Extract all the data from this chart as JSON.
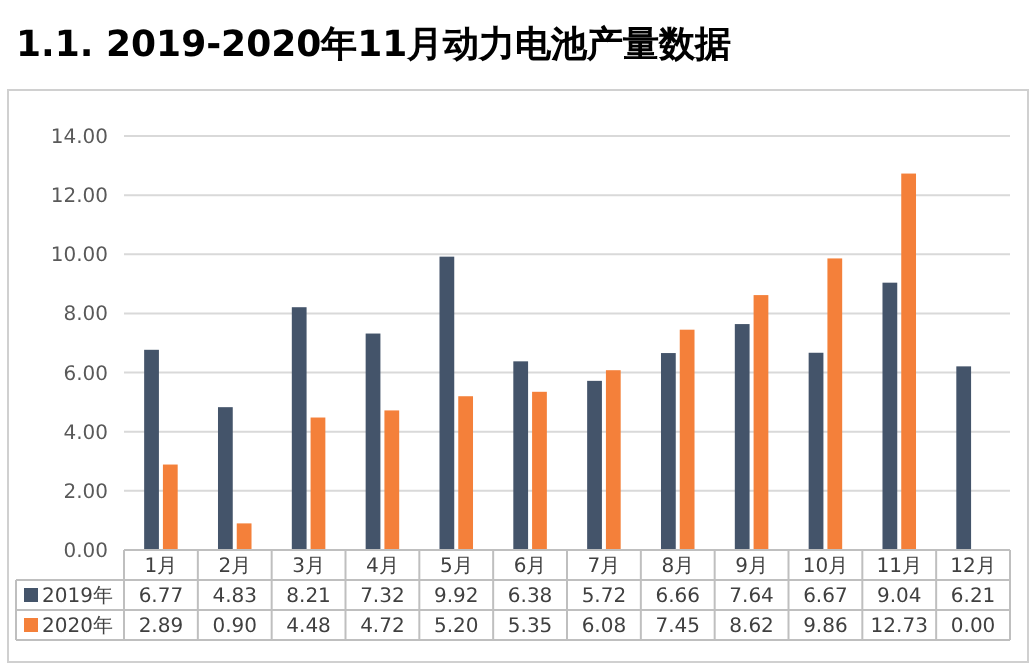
{
  "chart_data": {
    "type": "bar",
    "title": "1.1. 2019-2020年11月动力电池产量数据",
    "categories": [
      "1月",
      "2月",
      "3月",
      "4月",
      "5月",
      "6月",
      "7月",
      "8月",
      "9月",
      "10月",
      "11月",
      "12月"
    ],
    "series": [
      {
        "name": "2019年",
        "color": "#44546a",
        "values": [
          6.77,
          4.83,
          8.21,
          7.32,
          9.92,
          6.38,
          5.72,
          6.66,
          7.64,
          6.67,
          9.04,
          6.21
        ],
        "value_labels": [
          "6.77",
          "4.83",
          "8.21",
          "7.32",
          "9.92",
          "6.38",
          "5.72",
          "6.66",
          "7.64",
          "6.67",
          "9.04",
          "6.21"
        ]
      },
      {
        "name": "2020年",
        "color": "#f4803a",
        "values": [
          2.89,
          0.9,
          4.48,
          4.72,
          5.2,
          5.35,
          6.08,
          7.45,
          8.62,
          9.86,
          12.73,
          0.0
        ],
        "value_labels": [
          "2.89",
          "0.90",
          "4.48",
          "4.72",
          "5.20",
          "5.35",
          "6.08",
          "7.45",
          "8.62",
          "9.86",
          "12.73",
          "0.00"
        ]
      }
    ],
    "ylim": [
      0,
      14
    ],
    "yticks": [
      {
        "value": 0,
        "label": "0.00"
      },
      {
        "value": 2,
        "label": "2.00"
      },
      {
        "value": 4,
        "label": "4.00"
      },
      {
        "value": 6,
        "label": "6.00"
      },
      {
        "value": 8,
        "label": "8.00"
      },
      {
        "value": 10,
        "label": "10.00"
      },
      {
        "value": 12,
        "label": "12.00"
      },
      {
        "value": 14,
        "label": "14.00"
      }
    ],
    "grid": "y",
    "legend": "bottom"
  }
}
